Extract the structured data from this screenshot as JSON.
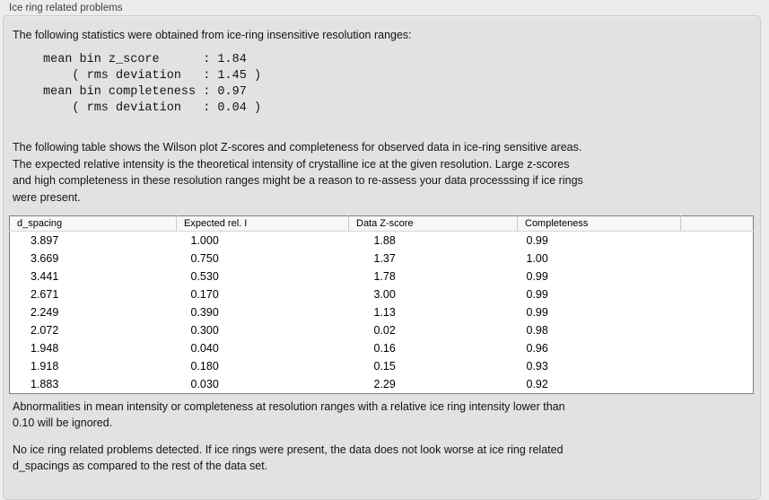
{
  "panel": {
    "title": "Ice ring related problems"
  },
  "intro": {
    "lines": [
      "The following statistics were obtained from ice-ring insensitive resolution ranges:"
    ]
  },
  "stats": {
    "lines": [
      "mean bin z_score      : 1.84",
      "    ( rms deviation   : 1.45 )",
      "mean bin completeness : 0.97",
      "    ( rms deviation   : 0.04 )"
    ]
  },
  "description": {
    "lines": [
      "The following table shows the Wilson plot Z-scores and completeness for observed data in ice-ring sensitive areas.",
      "The expected relative intensity is the theoretical intensity of crystalline ice at the given resolution. Large z-scores",
      "and high completeness in these resolution ranges might be a reason to re-assess your data processsing if ice rings",
      "were present."
    ]
  },
  "table": {
    "columns": [
      "d_spacing",
      "Expected rel. I",
      "Data Z-score",
      "Completeness",
      ""
    ],
    "rows": [
      [
        "3.897",
        "1.000",
        "1.88",
        "0.99"
      ],
      [
        "3.669",
        "0.750",
        "1.37",
        "1.00"
      ],
      [
        "3.441",
        "0.530",
        "1.78",
        "0.99"
      ],
      [
        "2.671",
        "0.170",
        "3.00",
        "0.99"
      ],
      [
        "2.249",
        "0.390",
        "1.13",
        "0.99"
      ],
      [
        "2.072",
        "0.300",
        "0.02",
        "0.98"
      ],
      [
        "1.948",
        "0.040",
        "0.16",
        "0.96"
      ],
      [
        "1.918",
        "0.180",
        "0.15",
        "0.93"
      ],
      [
        "1.883",
        "0.030",
        "2.29",
        "0.92"
      ]
    ]
  },
  "notes": [
    {
      "lines": [
        "Abnormalities in mean intensity or completeness at resolution ranges with a relative ice ring intensity lower than",
        "0.10 will be ignored."
      ]
    },
    {
      "lines": [
        "No ice ring related problems detected. If ice rings were present, the data does not look worse at ice ring related",
        "d_spacings as compared to the rest of the data set."
      ]
    }
  ],
  "colors": {
    "window_bg": "#ececec",
    "groupbox_bg": "#e2e2e2",
    "groupbox_border": "#cccccc",
    "table_border": "#7f7f7f",
    "header_bg": "#f7f7f7",
    "text": "#141414"
  }
}
